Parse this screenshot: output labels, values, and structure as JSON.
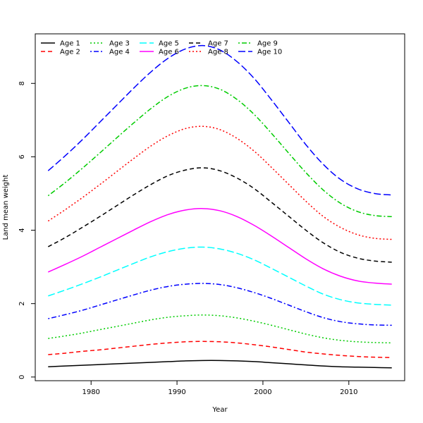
{
  "chart_data": {
    "type": "line",
    "title": "",
    "xlabel": "Year",
    "ylabel": "Land mean weight",
    "xlim": [
      1973.5,
      2016.5
    ],
    "ylim": [
      -0.1,
      9.35
    ],
    "xticks": [
      1980,
      1990,
      2000,
      2010
    ],
    "yticks": [
      0,
      2,
      4,
      6,
      8
    ],
    "grid": false,
    "legend_position": "top-left",
    "x": [
      1975,
      1977,
      1979,
      1981,
      1983,
      1985,
      1987,
      1989,
      1991,
      1993,
      1995,
      1997,
      1999,
      2001,
      2003,
      2005,
      2007,
      2009,
      2011,
      2013,
      2015
    ],
    "series": [
      {
        "name": "Age 1",
        "color": "#000000",
        "dash": "solid",
        "values": [
          0.28,
          0.3,
          0.32,
          0.34,
          0.36,
          0.38,
          0.4,
          0.42,
          0.44,
          0.45,
          0.45,
          0.44,
          0.42,
          0.39,
          0.36,
          0.33,
          0.3,
          0.28,
          0.27,
          0.26,
          0.25
        ]
      },
      {
        "name": "Age 2",
        "color": "#ff0000",
        "dash": "dashed",
        "values": [
          0.61,
          0.65,
          0.7,
          0.74,
          0.79,
          0.84,
          0.89,
          0.93,
          0.96,
          0.97,
          0.96,
          0.93,
          0.88,
          0.82,
          0.75,
          0.68,
          0.63,
          0.59,
          0.56,
          0.54,
          0.53
        ]
      },
      {
        "name": "Age 3",
        "color": "#00cc00",
        "dash": "dotted",
        "values": [
          1.05,
          1.12,
          1.2,
          1.29,
          1.38,
          1.47,
          1.56,
          1.63,
          1.67,
          1.69,
          1.67,
          1.61,
          1.52,
          1.41,
          1.29,
          1.17,
          1.07,
          1.0,
          0.96,
          0.94,
          0.93
        ]
      },
      {
        "name": "Age 4",
        "color": "#0000ff",
        "dash": "dotdash",
        "values": [
          1.59,
          1.7,
          1.82,
          1.96,
          2.1,
          2.24,
          2.37,
          2.47,
          2.53,
          2.55,
          2.52,
          2.43,
          2.3,
          2.14,
          1.96,
          1.78,
          1.62,
          1.51,
          1.45,
          1.42,
          1.41
        ]
      },
      {
        "name": "Age 5",
        "color": "#00ffff",
        "dash": "longdash",
        "values": [
          2.21,
          2.37,
          2.54,
          2.72,
          2.91,
          3.1,
          3.28,
          3.42,
          3.51,
          3.54,
          3.49,
          3.37,
          3.19,
          2.96,
          2.72,
          2.48,
          2.26,
          2.11,
          2.02,
          1.98,
          1.96
        ]
      },
      {
        "name": "Age 6",
        "color": "#ff00ff",
        "dash": "solid",
        "values": [
          2.86,
          3.07,
          3.29,
          3.53,
          3.77,
          4.01,
          4.24,
          4.43,
          4.55,
          4.59,
          4.53,
          4.37,
          4.13,
          3.84,
          3.53,
          3.22,
          2.95,
          2.75,
          2.62,
          2.56,
          2.53
        ]
      },
      {
        "name": "Age 7",
        "color": "#000000",
        "dash": "dashed",
        "values": [
          3.55,
          3.8,
          4.08,
          4.37,
          4.67,
          4.97,
          5.25,
          5.49,
          5.64,
          5.7,
          5.62,
          5.42,
          5.13,
          4.76,
          4.38,
          4.0,
          3.66,
          3.4,
          3.24,
          3.16,
          3.13
        ]
      },
      {
        "name": "Age 8",
        "color": "#ff0000",
        "dash": "dotted",
        "values": [
          4.25,
          4.56,
          4.89,
          5.24,
          5.6,
          5.96,
          6.3,
          6.58,
          6.77,
          6.83,
          6.74,
          6.5,
          6.15,
          5.71,
          5.25,
          4.79,
          4.38,
          4.08,
          3.88,
          3.78,
          3.75
        ]
      },
      {
        "name": "Age 9",
        "color": "#00cc00",
        "dash": "dotdash",
        "values": [
          4.94,
          5.3,
          5.69,
          6.1,
          6.52,
          6.93,
          7.32,
          7.65,
          7.87,
          7.94,
          7.84,
          7.56,
          7.15,
          6.64,
          6.1,
          5.57,
          5.1,
          4.74,
          4.51,
          4.4,
          4.37
        ]
      },
      {
        "name": "Age 10",
        "color": "#0000ff",
        "dash": "longdash",
        "values": [
          5.62,
          6.03,
          6.47,
          6.94,
          7.41,
          7.88,
          8.32,
          8.69,
          8.94,
          9.03,
          8.91,
          8.59,
          8.13,
          7.55,
          6.94,
          6.33,
          5.8,
          5.39,
          5.13,
          5.0,
          4.96
        ]
      }
    ]
  }
}
